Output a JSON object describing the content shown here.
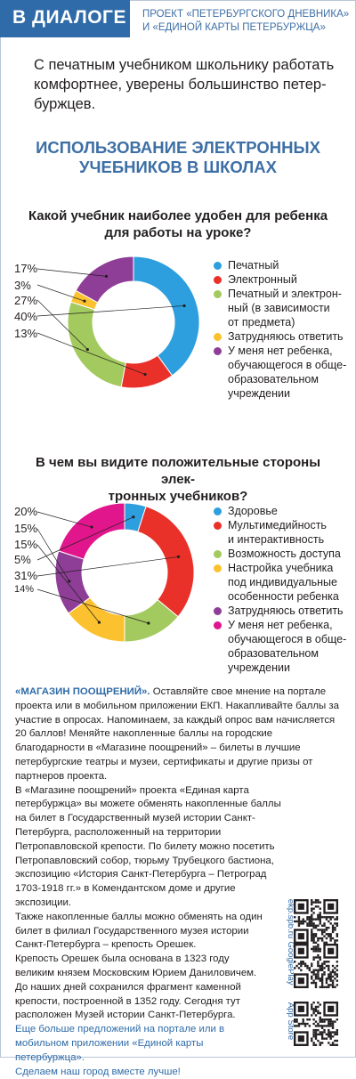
{
  "header": {
    "section": "В ДИАЛОГЕ",
    "project_line1": "ПРОЕКТ «ПЕТЕРБУРГСКОГО ДНЕВНИКА»",
    "project_line2": "И «ЕДИНОЙ КАРТЫ ПЕТЕРБУРЖЦА»"
  },
  "lead": {
    "line1": "С печатным учебником школьнику работать",
    "line2": "комфортнее, уверены большинство петер-",
    "line3": "буржцев."
  },
  "title": {
    "line1": "ИСПОЛЬЗОВАНИЕ ЭЛЕКТРОННЫХ",
    "line2": "УЧЕБНИКОВ В ШКОЛАХ"
  },
  "colors": {
    "blue": "#2e9fde",
    "red": "#e9312a",
    "green": "#a3ca5e",
    "yellow": "#fcc12e",
    "purple": "#8e3e96",
    "pink": "#e1168c"
  },
  "chart_data": [
    {
      "type": "pie",
      "title": "Какой учебник наиболее удобен для ребенка для работы на уроке?",
      "title_line1": "Какой учебник наиболее удобен для ребенка",
      "title_line2": "для работы на уроке?",
      "slices": [
        {
          "label": "Печатный",
          "value": 40,
          "color": "#2e9fde"
        },
        {
          "label": "Электронный",
          "value": 13,
          "color": "#e9312a"
        },
        {
          "label": "Печатный и электронный (в зависимости от предмета)",
          "value": 27,
          "color": "#a3ca5e"
        },
        {
          "label": "Затрудняюсь ответить",
          "value": 3,
          "color": "#fcc12e"
        },
        {
          "label": "У меня нет ребенка, обучающегося в общеобразовательном учреждении",
          "value": 17,
          "color": "#8e3e96"
        }
      ],
      "pct_labels": [
        "17%",
        "3%",
        "27%",
        "40%",
        "13%"
      ],
      "legend": [
        {
          "lines": [
            "Печатный"
          ],
          "color": "#2e9fde"
        },
        {
          "lines": [
            "Электронный"
          ],
          "color": "#e9312a"
        },
        {
          "lines": [
            "Печатный и электрон-",
            "ный (в зависимости",
            "от предмета)"
          ],
          "color": "#a3ca5e"
        },
        {
          "lines": [
            "Затрудняюсь ответить"
          ],
          "color": "#fcc12e"
        },
        {
          "lines": [
            "У меня нет ребенка,",
            "обучающегося в обще-",
            "образовательном",
            "учреждении"
          ],
          "color": "#8e3e96"
        }
      ]
    },
    {
      "type": "pie",
      "title": "В чем вы видите положительные стороны электронных учебников?",
      "title_line1": "В чем вы видите положительные стороны элек-",
      "title_line2": "тронных учебников?",
      "slices": [
        {
          "label": "Здоровье",
          "value": 5,
          "color": "#2e9fde"
        },
        {
          "label": "Мультимедийность и интерактивность",
          "value": 31,
          "color": "#e9312a"
        },
        {
          "label": "Возможность доступа",
          "value": 14,
          "color": "#a3ca5e"
        },
        {
          "label": "Настройка учебника под индивидуальные особенности ребенка",
          "value": 15,
          "color": "#fcc12e"
        },
        {
          "label": "Затрудняюсь ответить",
          "value": 15,
          "color": "#8e3e96"
        },
        {
          "label": "У меня нет ребенка, обучающегося в общеобразовательном учреждении",
          "value": 20,
          "color": "#e1168c"
        }
      ],
      "pct_labels": [
        "20%",
        "15%",
        "15%",
        "5%",
        "31%",
        "14%"
      ],
      "legend": [
        {
          "lines": [
            "Здоровье"
          ],
          "color": "#2e9fde"
        },
        {
          "lines": [
            "Мультимедийность",
            "и интерактивность"
          ],
          "color": "#e9312a"
        },
        {
          "lines": [
            "Возможность доступа"
          ],
          "color": "#a3ca5e"
        },
        {
          "lines": [
            "Настройка учебника",
            "под индивидуальные",
            "особенности ребенка"
          ],
          "color": "#fcc12e"
        },
        {
          "lines": [
            "Затрудняюсь ответить"
          ],
          "color": "#8e3e96"
        },
        {
          "lines": [
            "У меня нет ребенка,",
            "обучающегося в обще-",
            "образовательном",
            "учреждении"
          ],
          "color": "#e1168c"
        }
      ]
    }
  ],
  "text": {
    "p1_hl": "«МАГАЗИН ПООЩРЕНИЙ».",
    "p1": " Оставляйте свое мнение на портале проекта или в мобильном приложении ЕКП. Накапливайте баллы за участие в опросах. Напоминаем, за каждый опрос вам начисляется 20 баллов! Меняйте накопленные баллы на городские благодарности в «Магазине поощрений» – билеты в лучшие петербургские театры и музеи, сертификаты и другие призы от партнеров проекта.",
    "p2": "В «Магазине поощрений» проекта «Единая карта петербуржца» вы можете обменять накопленные баллы на билет в Государственный музей истории Санкт-Петербурга, расположенный на территории Петропавловской крепости. По билету можно посетить Петропавловский собор, тюрьму Трубецкого бастиона, экспозицию «История Санкт-Петербурга – Петроград 1703-1918 гг.» в Комендантском доме и другие экспозиции.",
    "p3": "Также накопленные баллы можно обменять на один билет в филиал Государственного музея истории Санкт-Петербурга – крепость Орешек.",
    "p4": "Крепость Орешек была основана в 1323 году великим князем Московским Юрием Даниловичем. До наших дней сохранился фрагмент каменной крепости, построенной в 1352 году. Сегодня тут расположен Музей истории Санкт-Петербурга.",
    "p5": "Еще больше предложений на портале или в мобильном приложении «Единой карты петербуржца».",
    "p6": "Сделаем наш город вместе лучше!"
  },
  "qr_labels": [
    "ekp.spb.ru",
    "GooglePlay",
    "App Store"
  ]
}
